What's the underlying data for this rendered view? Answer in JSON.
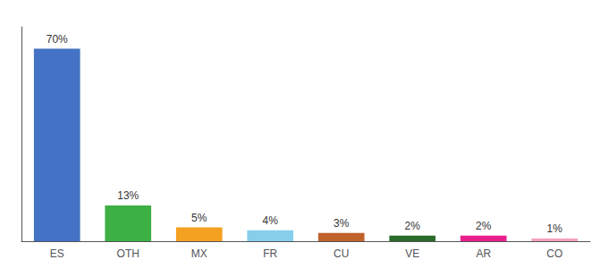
{
  "chart_data": {
    "type": "bar",
    "categories": [
      "ES",
      "OTH",
      "MX",
      "FR",
      "CU",
      "VE",
      "AR",
      "CO"
    ],
    "values": [
      70,
      13,
      5,
      4,
      3,
      2,
      2,
      1
    ],
    "value_labels": [
      "70%",
      "13%",
      "5%",
      "4%",
      "3%",
      "2%",
      "2%",
      "1%"
    ],
    "colors": [
      "#4472C4",
      "#3CB043",
      "#F4A020",
      "#87CEEB",
      "#C0622A",
      "#2A6B2A",
      "#E91E8C",
      "#F4A0C0"
    ],
    "data_labels": true,
    "ylim": [
      0,
      78
    ],
    "grid": false,
    "tick_labels": "x"
  }
}
